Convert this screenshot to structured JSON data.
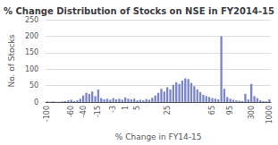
{
  "chart_data": {
    "type": "bar",
    "title": "% Change Distribution of Stocks on NSE in FY2014-15",
    "xlabel": "% Change in FY14-15",
    "ylabel": "No. of Stocks",
    "categories": [
      "-100",
      null,
      null,
      null,
      null,
      null,
      null,
      null,
      "-60",
      null,
      null,
      null,
      "-40",
      null,
      null,
      null,
      null,
      "-15",
      null,
      null,
      null,
      null,
      "-3",
      null,
      null,
      null,
      "1",
      null,
      null,
      null,
      "5",
      null,
      null,
      null,
      null,
      null,
      null,
      null,
      null,
      null,
      "25",
      null,
      null,
      null,
      null,
      null,
      null,
      null,
      null,
      null,
      null,
      null,
      null,
      null,
      null,
      "65",
      null,
      null,
      null,
      null,
      null,
      "95",
      null,
      null,
      null,
      null,
      null,
      null,
      "300",
      null,
      null,
      null,
      null,
      null,
      "1000"
    ],
    "values": [
      2,
      1,
      2,
      1,
      1,
      2,
      3,
      5,
      7,
      3,
      5,
      10,
      20,
      28,
      25,
      32,
      18,
      38,
      12,
      8,
      10,
      7,
      12,
      8,
      10,
      7,
      14,
      10,
      8,
      10,
      5,
      7,
      5,
      9,
      7,
      13,
      20,
      28,
      40,
      32,
      45,
      38,
      52,
      60,
      55,
      65,
      72,
      70,
      58,
      48,
      38,
      30,
      22,
      18,
      15,
      12,
      10,
      8,
      200,
      40,
      15,
      10,
      7,
      5,
      4,
      3,
      25,
      8,
      55,
      18,
      12,
      5,
      3,
      2,
      8
    ],
    "color": "#7b86c8",
    "ylim": [
      0,
      250
    ],
    "yticks": [
      0,
      50,
      100,
      150,
      200,
      250
    ],
    "grid": true
  }
}
